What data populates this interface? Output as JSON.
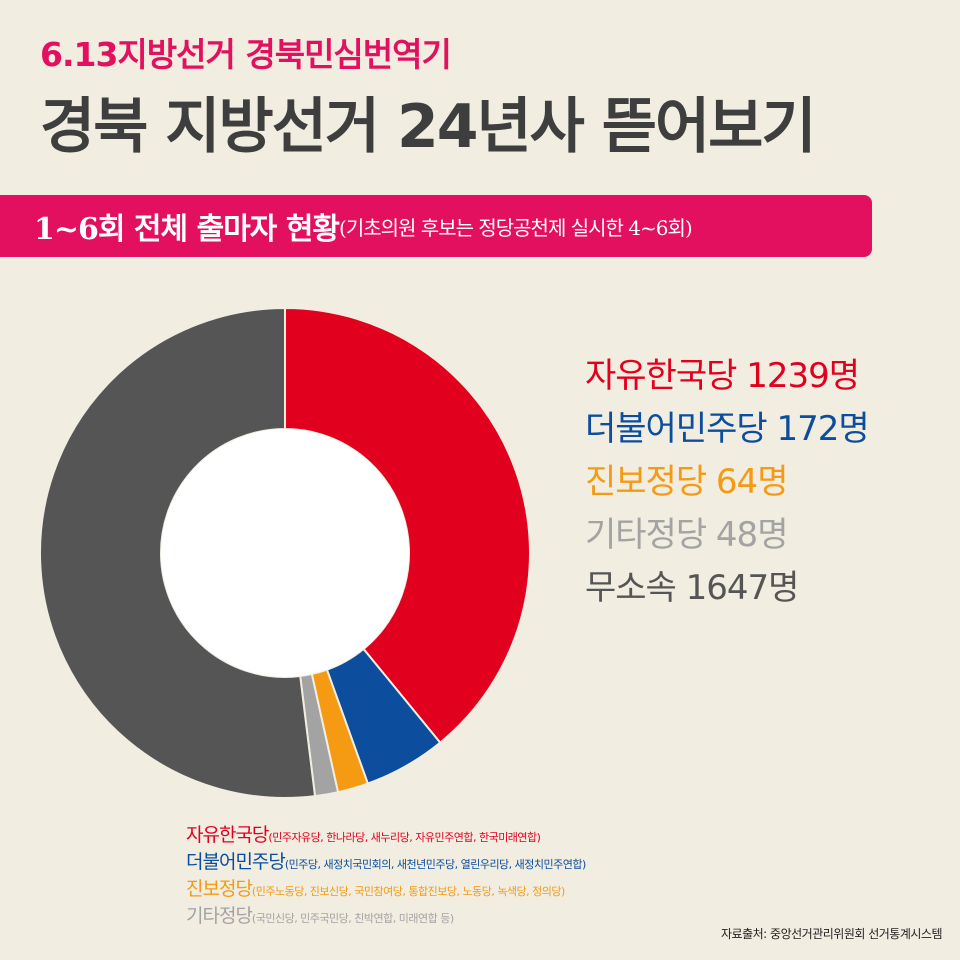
{
  "header": {
    "kicker": "6.13지방선거 경북민심번역기",
    "title": "경북 지방선거 24년사 뜯어보기"
  },
  "banner": {
    "main": "1~6회 전체 출마자 현황",
    "note": "(기초의원 후보는 정당공천제 실시한 4~6회)"
  },
  "legend": [
    {
      "text": "자유한국당 1239명",
      "color": "#e2001f"
    },
    {
      "text": "더불어민주당 172명",
      "color": "#0c4d9e"
    },
    {
      "text": "진보정당 64명",
      "color": "#f59a13"
    },
    {
      "text": "기타정당 48명",
      "color": "#a3a3a3"
    },
    {
      "text": "무소속 1647명",
      "color": "#555555"
    }
  ],
  "chart_data": {
    "type": "pie",
    "labels": [
      "자유한국당",
      "더불어민주당",
      "진보정당",
      "기타정당",
      "무소속"
    ],
    "values": [
      1239,
      172,
      64,
      48,
      1647
    ],
    "colors": [
      "#e2001f",
      "#0c4d9e",
      "#f59a13",
      "#a3a3a3",
      "#555555"
    ]
  },
  "party_notes": [
    {
      "name": "자유한국당",
      "members": "(민주자유당, 한나라당, 새누리당, 자유민주연합, 한국미래연합)",
      "color": "#e2001f"
    },
    {
      "name": "더불어민주당",
      "members": "(민주당, 새정치국민회의, 새천년민주당, 열린우리당, 새정치민주연합)",
      "color": "#0c4d9e"
    },
    {
      "name": "진보정당",
      "members": "(민주노동당, 진보신당, 국민참여당, 통합진보당, 노동당, 녹색당, 정의당)",
      "color": "#f59a13"
    },
    {
      "name": "기타정당",
      "members": "(국민신당, 민주국민당, 친박연합, 미래연합 등)",
      "color": "#a3a3a3"
    }
  ],
  "source": "자료출처: 중앙선거관리위원회 선거통계시스템"
}
